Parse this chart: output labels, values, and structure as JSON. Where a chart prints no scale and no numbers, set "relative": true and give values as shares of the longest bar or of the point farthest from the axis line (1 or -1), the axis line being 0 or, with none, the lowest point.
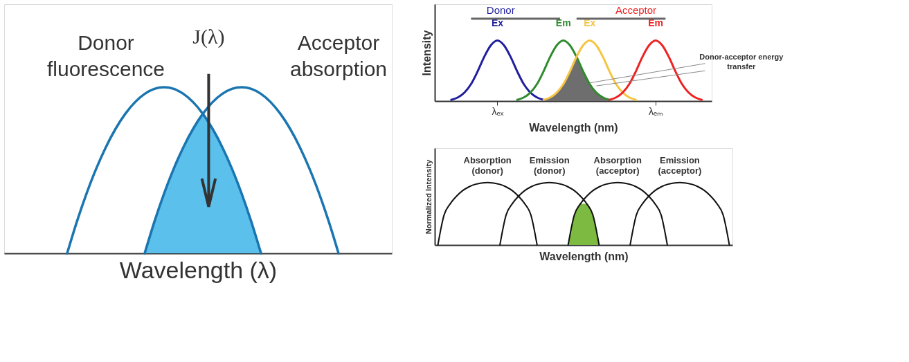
{
  "chart_data": [
    {
      "type": "line",
      "relative": true,
      "tick_labels": false,
      "xlabel": "Wavelength (λ)",
      "annotations": [
        "J(λ)"
      ],
      "categories": [
        null,
        null,
        null,
        null,
        null,
        null,
        null,
        null,
        null,
        null,
        null,
        null,
        null,
        null,
        null,
        null,
        null,
        null,
        null,
        null,
        null,
        null,
        null,
        null,
        null,
        null,
        null,
        null,
        null,
        null,
        null,
        null,
        null,
        null,
        null,
        null,
        null,
        null,
        null,
        null
      ],
      "series": [
        {
          "type": "area",
          "color": "#5bc0eb",
          "values": [
            null,
            null,
            null,
            null,
            null,
            null,
            null,
            null,
            null,
            null,
            null,
            null,
            null,
            null,
            0,
            0.19,
            0.36,
            0.51,
            0.64,
            0.75,
            0.84,
            0.75,
            0.64,
            0.51,
            0.36,
            0.19,
            0,
            null,
            null,
            null,
            null,
            null,
            null,
            null,
            null,
            null,
            null,
            null,
            null,
            null
          ]
        },
        {
          "name": "Donor fluorescence",
          "color": "#1a75b0",
          "values": [
            null,
            null,
            null,
            null,
            null,
            null,
            0,
            0.19,
            0.36,
            0.51,
            0.64,
            0.75,
            0.84,
            0.91,
            0.96,
            0.99,
            1,
            0.99,
            0.96,
            0.91,
            0.84,
            0.75,
            0.64,
            0.51,
            0.36,
            0.19,
            0,
            null,
            null,
            null,
            null,
            null,
            null,
            null,
            null,
            null,
            null,
            null,
            null,
            null
          ]
        },
        {
          "name": "Acceptor absorption",
          "color": "#1a75b0",
          "values": [
            null,
            null,
            null,
            null,
            null,
            null,
            null,
            null,
            null,
            null,
            null,
            null,
            null,
            null,
            0,
            0.19,
            0.36,
            0.51,
            0.64,
            0.75,
            0.84,
            0.91,
            0.96,
            0.99,
            1,
            0.99,
            0.96,
            0.91,
            0.84,
            0.75,
            0.64,
            0.51,
            0.36,
            0.19,
            0,
            null,
            null,
            null,
            null,
            null
          ]
        }
      ]
    },
    {
      "type": "line",
      "relative": true,
      "tick_labels": "x",
      "xlabel": "Wavelength (nm)",
      "ylabel": "Intensity",
      "annotations": [
        "Donor",
        "Acceptor",
        "Donor-acceptor energy transfer"
      ],
      "categories": [
        null,
        null,
        null,
        null,
        null,
        null,
        null,
        null,
        null,
        "λₑₓ",
        null,
        null,
        null,
        null,
        null,
        null,
        null,
        null,
        null,
        null,
        null,
        null,
        null,
        null,
        null,
        null,
        null,
        null,
        null,
        null,
        null,
        null,
        null,
        "λₑₘ",
        null,
        null,
        null,
        null,
        null,
        null,
        null,
        null
      ],
      "series": [
        {
          "type": "area",
          "color": "#6e6e6e",
          "values": [
            null,
            null,
            null,
            null,
            null,
            null,
            null,
            null,
            null,
            null,
            null,
            null,
            null,
            null,
            null,
            null,
            0.02,
            0.06,
            0.14,
            0.28,
            0.49,
            0.73,
            0.49,
            0.28,
            0.14,
            0.06,
            0.02,
            null,
            null,
            null,
            null,
            null,
            null,
            null,
            null,
            null,
            null,
            null,
            null,
            null,
            null,
            null
          ]
        },
        {
          "name": "Ex",
          "color": "#1f1f9e",
          "values": [
            null,
            null,
            0.02,
            0.06,
            0.14,
            0.28,
            0.49,
            0.73,
            0.92,
            1,
            0.92,
            0.73,
            0.49,
            0.28,
            0.14,
            0.06,
            0.02,
            null,
            null,
            null,
            null,
            null,
            null,
            null,
            null,
            null,
            null,
            null,
            null,
            null,
            null,
            null,
            null,
            null,
            null,
            null,
            null,
            null,
            null,
            null,
            null,
            null
          ]
        },
        {
          "name": "Em",
          "color": "#2e8b2e",
          "values": [
            null,
            null,
            null,
            null,
            null,
            null,
            null,
            null,
            null,
            null,
            null,
            null,
            0.02,
            0.06,
            0.14,
            0.28,
            0.49,
            0.73,
            0.92,
            1,
            0.92,
            0.73,
            0.49,
            0.28,
            0.14,
            0.06,
            0.02,
            null,
            null,
            null,
            null,
            null,
            null,
            null,
            null,
            null,
            null,
            null,
            null,
            null,
            null,
            null
          ]
        },
        {
          "name": "Ex",
          "color": "#f5c542",
          "values": [
            null,
            null,
            null,
            null,
            null,
            null,
            null,
            null,
            null,
            null,
            null,
            null,
            null,
            null,
            null,
            null,
            0.02,
            0.06,
            0.14,
            0.28,
            0.49,
            0.73,
            0.92,
            1,
            0.92,
            0.73,
            0.49,
            0.28,
            0.14,
            0.06,
            0.02,
            null,
            null,
            null,
            null,
            null,
            null,
            null,
            null,
            null,
            null,
            null
          ]
        },
        {
          "name": "Em",
          "color": "#ee2222",
          "values": [
            null,
            null,
            null,
            null,
            null,
            null,
            null,
            null,
            null,
            null,
            null,
            null,
            null,
            null,
            null,
            null,
            null,
            null,
            null,
            null,
            null,
            null,
            null,
            null,
            null,
            null,
            0.02,
            0.06,
            0.14,
            0.28,
            0.49,
            0.73,
            0.92,
            1,
            0.92,
            0.73,
            0.49,
            0.28,
            0.14,
            0.06,
            0.02,
            null
          ]
        }
      ]
    },
    {
      "type": "line",
      "relative": true,
      "tick_labels": false,
      "xlabel": "Wavelength (nm)",
      "ylabel": "Normalized Intensity",
      "categories": [
        null,
        null,
        null,
        null,
        null,
        null,
        null,
        null,
        null,
        null,
        null,
        null,
        null,
        null,
        null,
        null,
        null,
        null,
        null,
        null,
        null,
        null,
        null,
        null,
        null,
        null,
        null,
        null,
        null,
        null,
        null,
        null,
        null,
        null,
        null,
        null,
        null,
        null,
        null,
        null,
        null,
        null,
        null,
        null,
        null,
        null,
        null,
        null
      ],
      "series": [
        {
          "type": "area",
          "color": "#7dba42",
          "values": [
            null,
            null,
            null,
            null,
            null,
            null,
            null,
            null,
            null,
            null,
            null,
            null,
            null,
            null,
            null,
            null,
            null,
            null,
            null,
            null,
            null,
            0,
            0.48,
            0.66,
            0.66,
            0.48,
            0,
            null,
            null,
            null,
            null,
            null,
            null,
            null,
            null,
            null,
            null,
            null,
            null,
            null,
            null,
            null,
            null,
            null,
            null,
            null,
            null,
            null
          ]
        },
        {
          "name": "Absorption (donor)",
          "color": "#111111",
          "values": [
            0,
            0.48,
            0.66,
            0.78,
            0.87,
            0.93,
            0.97,
            0.99,
            1,
            0.99,
            0.97,
            0.93,
            0.87,
            0.78,
            0.66,
            0.48,
            0,
            null,
            null,
            null,
            null,
            null,
            null,
            null,
            null,
            null,
            null,
            null,
            null,
            null,
            null,
            null,
            null,
            null,
            null,
            null,
            null,
            null,
            null,
            null,
            null,
            null,
            null,
            null,
            null,
            null,
            null,
            null
          ]
        },
        {
          "name": "Emission (donor)",
          "color": "#111111",
          "values": [
            null,
            null,
            null,
            null,
            null,
            null,
            null,
            null,
            null,
            null,
            0,
            0.48,
            0.66,
            0.78,
            0.87,
            0.93,
            0.97,
            0.99,
            1,
            0.99,
            0.97,
            0.93,
            0.87,
            0.78,
            0.66,
            0.48,
            0,
            null,
            null,
            null,
            null,
            null,
            null,
            null,
            null,
            null,
            null,
            null,
            null,
            null,
            null,
            null,
            null,
            null,
            null,
            null,
            null,
            null
          ]
        },
        {
          "name": "Absorption (acceptor)",
          "color": "#111111",
          "values": [
            null,
            null,
            null,
            null,
            null,
            null,
            null,
            null,
            null,
            null,
            null,
            null,
            null,
            null,
            null,
            null,
            null,
            null,
            null,
            null,
            null,
            0,
            0.48,
            0.66,
            0.78,
            0.87,
            0.93,
            0.97,
            0.99,
            1,
            0.99,
            0.97,
            0.93,
            0.87,
            0.78,
            0.66,
            0.48,
            0,
            null,
            null,
            null,
            null,
            null,
            null,
            null,
            null,
            null,
            null
          ]
        },
        {
          "name": "Emission (acceptor)",
          "color": "#111111",
          "values": [
            null,
            null,
            null,
            null,
            null,
            null,
            null,
            null,
            null,
            null,
            null,
            null,
            null,
            null,
            null,
            null,
            null,
            null,
            null,
            null,
            null,
            null,
            null,
            null,
            null,
            null,
            null,
            null,
            null,
            null,
            null,
            0,
            0.48,
            0.66,
            0.78,
            0.87,
            0.93,
            0.97,
            0.99,
            1,
            0.99,
            0.97,
            0.93,
            0.87,
            0.78,
            0.66,
            0.48,
            0
          ]
        }
      ]
    }
  ]
}
